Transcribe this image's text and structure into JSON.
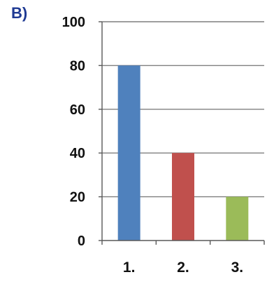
{
  "panel": {
    "label": "B)"
  },
  "chart_data": {
    "type": "bar",
    "categories": [
      "1.",
      "2.",
      "3."
    ],
    "values": [
      80,
      40,
      20
    ],
    "bar_colors": [
      "#4f81bd",
      "#c0504d",
      "#9bbb59"
    ],
    "title": "",
    "xlabel": "",
    "ylabel": "",
    "ylim": [
      0,
      100
    ],
    "yticks": [
      "0",
      "20",
      "40",
      "60",
      "80",
      "100"
    ],
    "grid": true,
    "legend": "none"
  },
  "colors": {
    "panel_label": "#1f3a93",
    "grid": "#7f7f7f",
    "axis": "#595959",
    "text": "#111111"
  }
}
